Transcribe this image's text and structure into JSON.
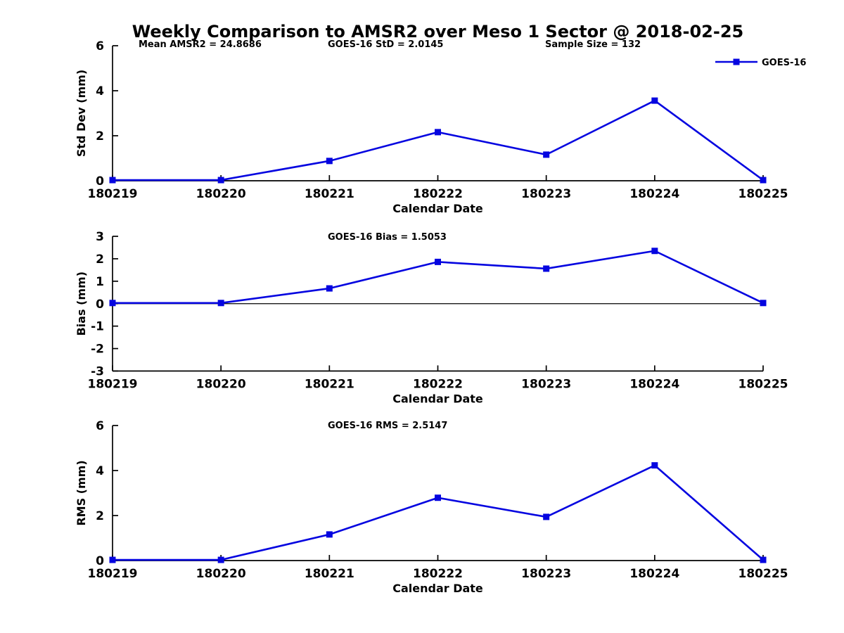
{
  "title": "Weekly Comparison to AMSR2 over Meso 1 Sector @ 2018-02-25",
  "colors": {
    "series_line": "#0505e0",
    "axis": "#000000",
    "text": "#000000",
    "background": "#ffffff"
  },
  "legend": {
    "label": "GOES-16",
    "position": "top-right",
    "marker": "square"
  },
  "stats": {
    "mean_amsr2": "24.8686",
    "goes16_std": "2.0145",
    "sample_size": "132",
    "goes16_bias": "1.5053",
    "goes16_rms": "2.5147"
  },
  "chart_data": [
    {
      "id": "std_dev",
      "type": "line",
      "ylabel": "Std Dev (mm)",
      "xlabel": "Calendar Date",
      "ylim": [
        0,
        6
      ],
      "yticks": [
        0,
        2,
        4,
        6
      ],
      "grid": false,
      "zero_line": false,
      "categories": [
        "180219",
        "180220",
        "180221",
        "180222",
        "180223",
        "180224",
        "180225"
      ],
      "annotations": [
        "Mean AMSR2 = 24.8686",
        "GOES-16 StD = 2.0145",
        "Sample Size = 132"
      ],
      "legend_visible": true,
      "series": [
        {
          "name": "GOES-16",
          "values": [
            0.03,
            0.03,
            0.88,
            2.16,
            1.16,
            3.56,
            0.03
          ]
        }
      ]
    },
    {
      "id": "bias",
      "type": "line",
      "ylabel": "Bias (mm)",
      "xlabel": "Calendar Date",
      "ylim": [
        -3,
        3
      ],
      "yticks": [
        3,
        2,
        1,
        0,
        -1,
        -2,
        -3
      ],
      "grid": false,
      "zero_line": true,
      "categories": [
        "180219",
        "180220",
        "180221",
        "180222",
        "180223",
        "180224",
        "180225"
      ],
      "annotations": [
        "GOES-16 Bias  = 1.5053"
      ],
      "legend_visible": false,
      "series": [
        {
          "name": "GOES-16",
          "values": [
            0.03,
            0.03,
            0.68,
            1.86,
            1.56,
            2.35,
            0.03
          ]
        }
      ]
    },
    {
      "id": "rms",
      "type": "line",
      "ylabel": "RMS (mm)",
      "xlabel": "Calendar Date",
      "ylim": [
        0,
        6
      ],
      "yticks": [
        0,
        2,
        4,
        6
      ],
      "grid": false,
      "zero_line": false,
      "categories": [
        "180219",
        "180220",
        "180221",
        "180222",
        "180223",
        "180224",
        "180225"
      ],
      "annotations": [
        "GOES-16 RMS = 2.5147"
      ],
      "legend_visible": false,
      "series": [
        {
          "name": "GOES-16",
          "values": [
            0.03,
            0.03,
            1.16,
            2.79,
            1.94,
            4.23,
            0.03
          ]
        }
      ]
    }
  ]
}
